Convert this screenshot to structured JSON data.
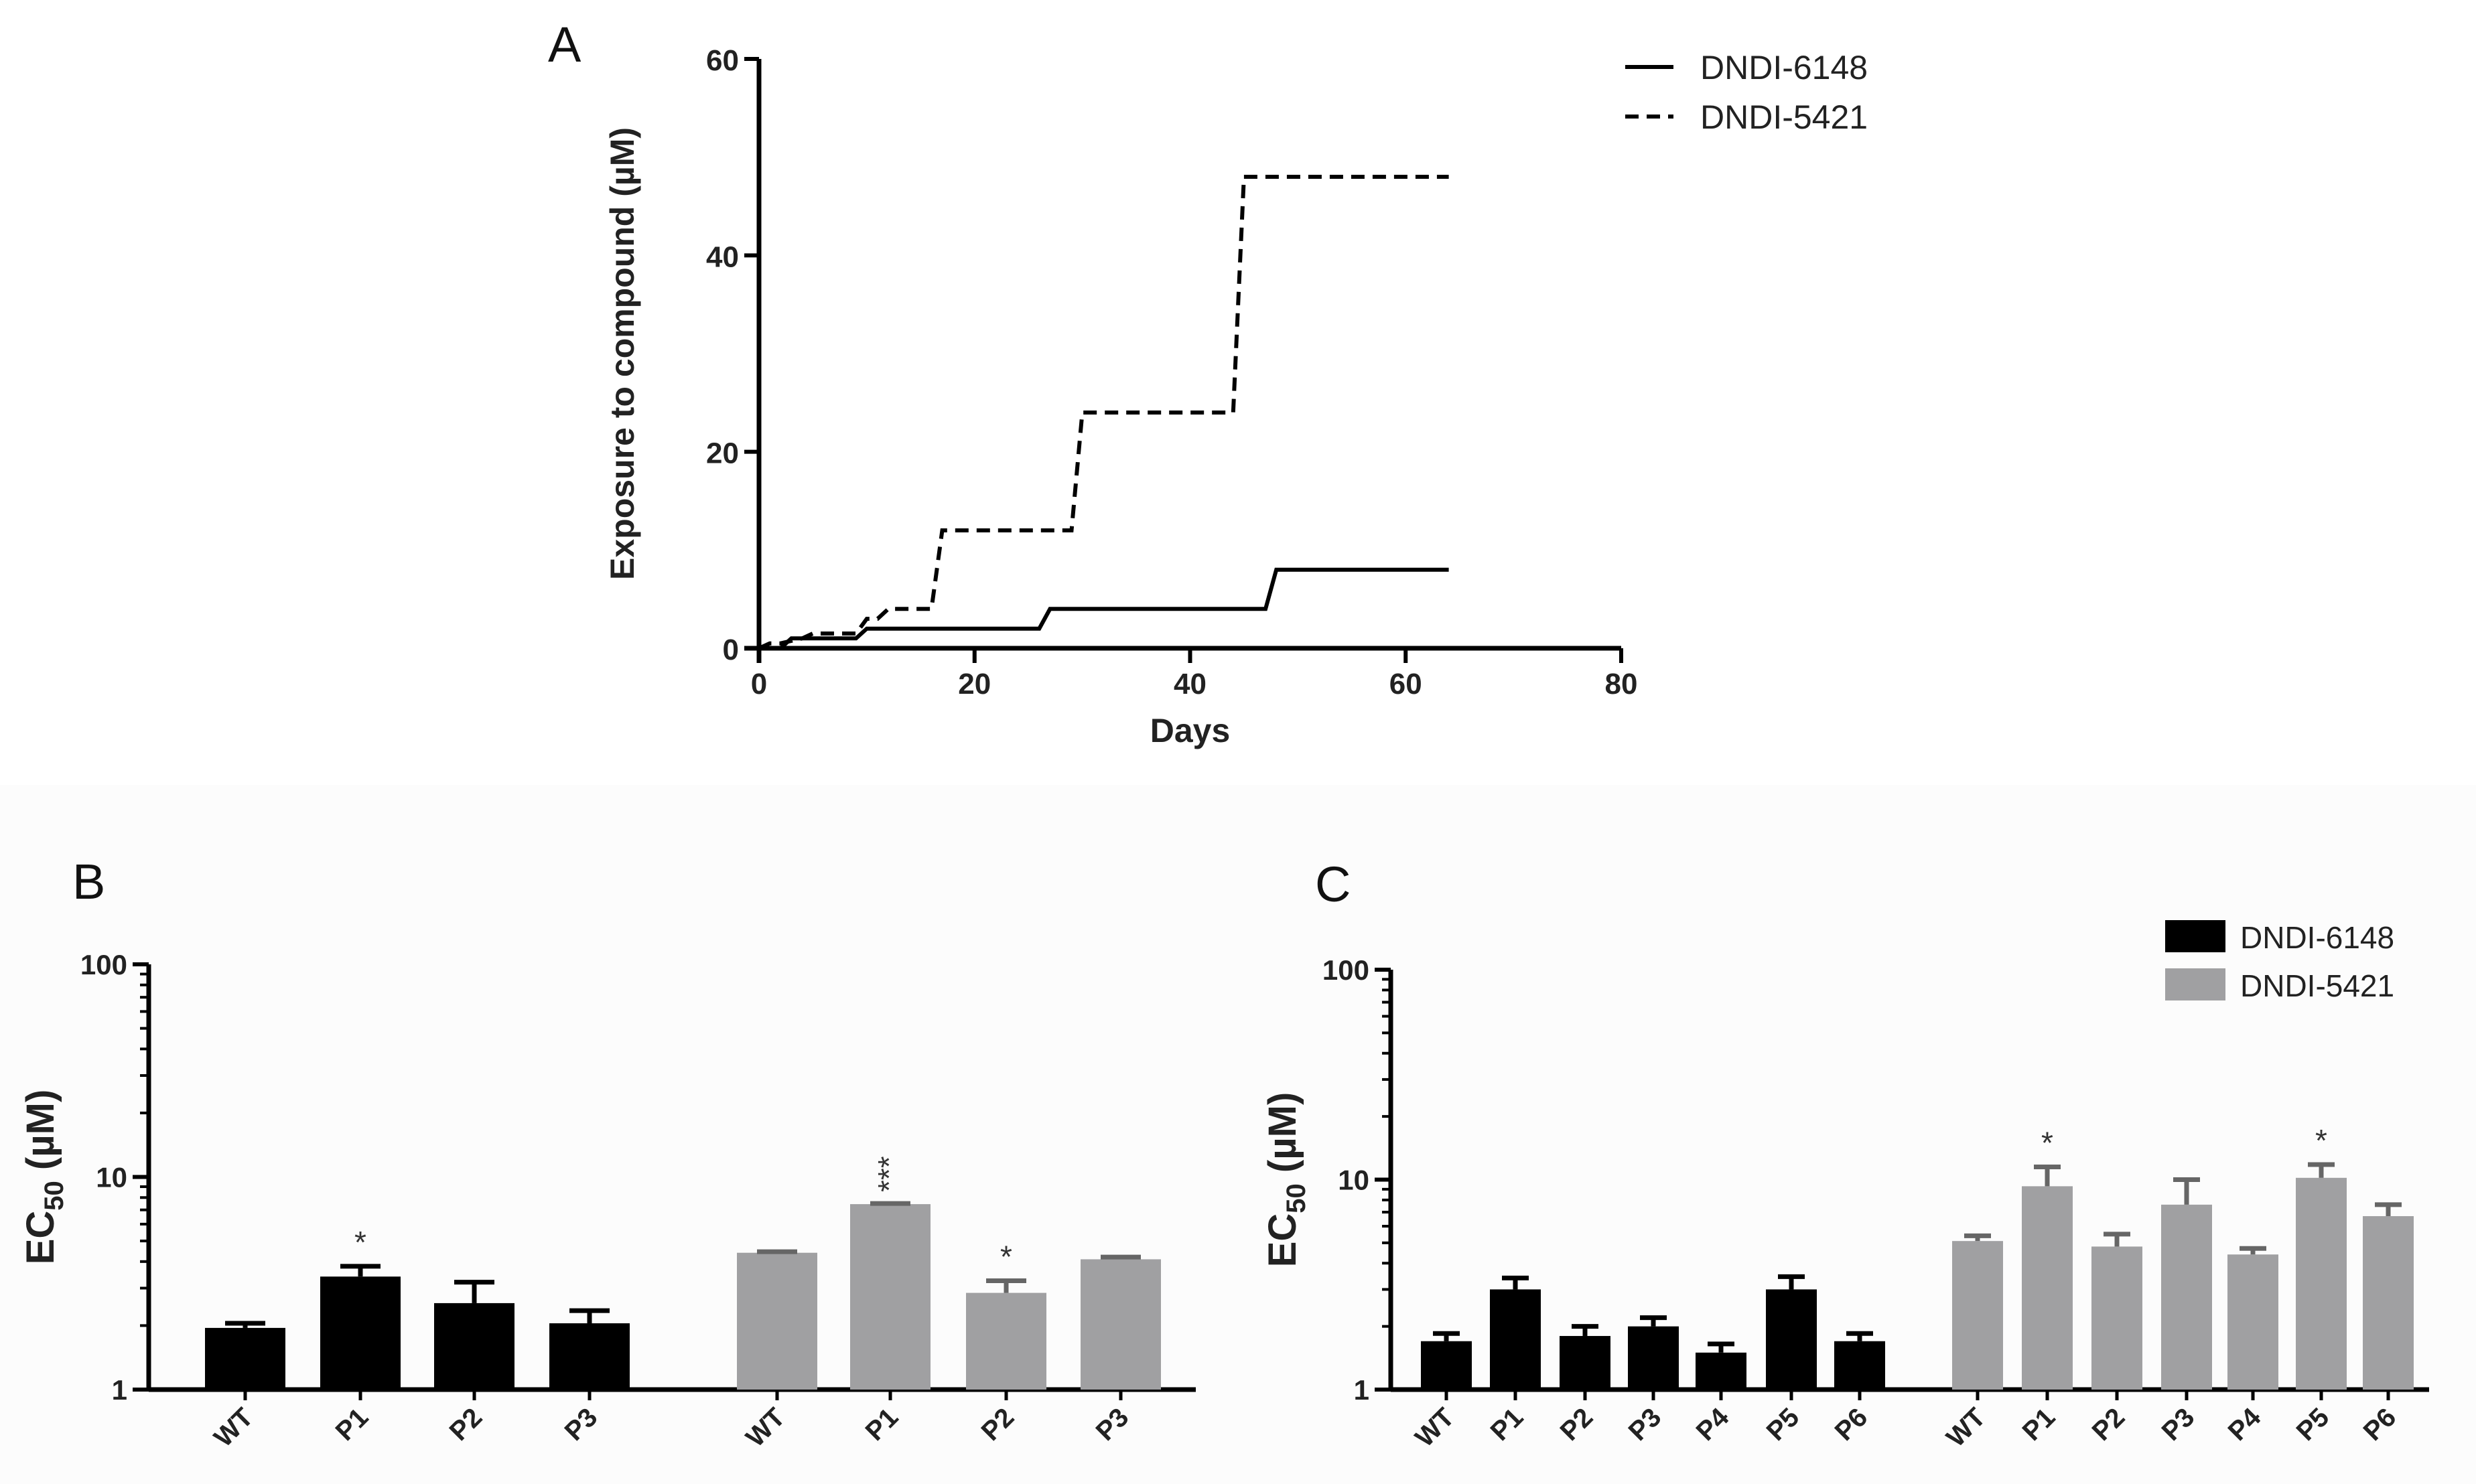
{
  "colors": {
    "series1": "#000000",
    "series2": "#a0a0a2",
    "axis": "#000000",
    "background_bottom": "#fcfcfc"
  },
  "chart_data": [
    {
      "panel": "A",
      "type": "line",
      "title": "",
      "xlabel": "Days",
      "ylabel": "Exposure to compound (µM)",
      "xlim": [
        0,
        80
      ],
      "ylim": [
        0,
        60
      ],
      "xticks": [
        "0",
        "20",
        "40",
        "60",
        "80"
      ],
      "yticks": [
        "0",
        "20",
        "40",
        "60"
      ],
      "legend": [
        "DNDI-6148",
        "DNDI-5421"
      ],
      "series": [
        {
          "name": "DNDI-6148",
          "style": "solid",
          "x": [
            0,
            2,
            3,
            9,
            10,
            26,
            27,
            47,
            48,
            64
          ],
          "y": [
            0,
            0,
            1,
            1,
            2,
            2,
            4,
            4,
            8,
            8
          ]
        },
        {
          "name": "DNDI-5421",
          "style": "dashed",
          "x": [
            0,
            1,
            2,
            4,
            5,
            9,
            10,
            11,
            12,
            15,
            16,
            17,
            18,
            29,
            30,
            31,
            44,
            45,
            46,
            64
          ],
          "y": [
            0,
            0.5,
            0.5,
            1,
            1.5,
            1.5,
            3,
            3,
            4,
            4,
            4,
            12,
            12,
            12,
            24,
            24,
            24,
            48,
            48,
            48
          ]
        }
      ]
    },
    {
      "panel": "B",
      "type": "bar",
      "yscale": "log",
      "ylabel": "EC50 (µM)",
      "ylim": [
        1,
        100
      ],
      "yticks": [
        "1",
        "10",
        "100"
      ],
      "groups": [
        {
          "name": "DNDI-6148",
          "categories": [
            "WT",
            "P1",
            "P2",
            "P3"
          ],
          "values": [
            1.95,
            3.4,
            2.55,
            2.05
          ],
          "errors": [
            2.05,
            3.8,
            3.2,
            2.35
          ],
          "significance": [
            "",
            "*",
            "",
            ""
          ]
        },
        {
          "name": "DNDI-5421",
          "categories": [
            "WT",
            "P1",
            "P2",
            "P3"
          ],
          "values": [
            4.4,
            7.45,
            2.85,
            4.1
          ],
          "errors": [
            4.45,
            7.5,
            3.25,
            4.2
          ],
          "significance": [
            "",
            "***",
            "*",
            ""
          ]
        }
      ]
    },
    {
      "panel": "C",
      "type": "bar",
      "yscale": "log",
      "ylabel": "EC50 (µM)",
      "ylim": [
        1,
        100
      ],
      "yticks": [
        "1",
        "10",
        "100"
      ],
      "legend": [
        "DNDI-6148",
        "DNDI-5421"
      ],
      "groups": [
        {
          "name": "DNDI-6148",
          "categories": [
            "WT",
            "P1",
            "P2",
            "P3",
            "P4",
            "P5",
            "P6"
          ],
          "values": [
            1.7,
            3.0,
            1.8,
            2.0,
            1.5,
            3.0,
            1.7
          ],
          "errors": [
            1.85,
            3.4,
            2.0,
            2.2,
            1.65,
            3.45,
            1.85
          ],
          "significance": [
            "",
            "",
            "",
            "",
            "",
            "",
            ""
          ]
        },
        {
          "name": "DNDI-5421",
          "categories": [
            "WT",
            "P1",
            "P2",
            "P3",
            "P4",
            "P5",
            "P6"
          ],
          "values": [
            5.1,
            9.3,
            4.8,
            7.6,
            4.4,
            10.2,
            6.7
          ],
          "errors": [
            5.4,
            11.5,
            5.5,
            10.0,
            4.7,
            11.8,
            7.6
          ],
          "significance": [
            "",
            "*",
            "",
            "",
            "",
            "*",
            ""
          ]
        }
      ]
    }
  ]
}
